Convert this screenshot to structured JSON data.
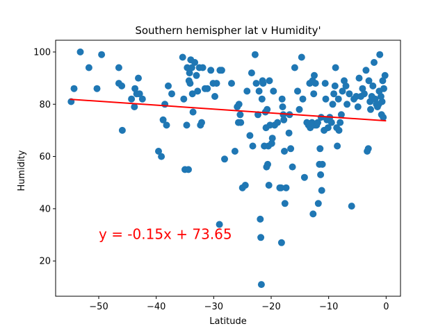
{
  "chart_data": {
    "type": "scatter",
    "title": "Southern hemispher lat v Humidity'",
    "xlabel": "Latitude",
    "ylabel": "Humidity",
    "xlim": [
      -57.5,
      2.5
    ],
    "ylim": [
      6.5,
      104.5
    ],
    "xticks": [
      -50,
      -40,
      -30,
      -20,
      -10,
      0
    ],
    "yticks": [
      20,
      40,
      60,
      80,
      100
    ],
    "grid": false,
    "point_color": "#1f77b4",
    "regression": {
      "slope": -0.15,
      "intercept": 73.65,
      "x_range": [
        -55,
        0
      ],
      "color": "#ff0000",
      "equation_label": "y = -0.15x + 73.65",
      "label_position": {
        "x": -50,
        "y": 30
      }
    },
    "points": [
      [
        -54.8,
        81
      ],
      [
        -54.3,
        86
      ],
      [
        -53.2,
        100
      ],
      [
        -51.7,
        94
      ],
      [
        -50.3,
        86
      ],
      [
        -49.5,
        99
      ],
      [
        -46.5,
        94
      ],
      [
        -46.5,
        88
      ],
      [
        -46.0,
        87
      ],
      [
        -45.9,
        70
      ],
      [
        -44.3,
        82
      ],
      [
        -43.8,
        79
      ],
      [
        -43.7,
        86
      ],
      [
        -43.4,
        84
      ],
      [
        -43.1,
        90
      ],
      [
        -42.9,
        84
      ],
      [
        -42.4,
        82
      ],
      [
        -39.6,
        62
      ],
      [
        -39.1,
        60
      ],
      [
        -38.8,
        74
      ],
      [
        -38.5,
        80
      ],
      [
        -38.2,
        72
      ],
      [
        -37.9,
        87
      ],
      [
        -37.3,
        84
      ],
      [
        -35.4,
        98
      ],
      [
        -35.2,
        82
      ],
      [
        -35.0,
        55
      ],
      [
        -34.7,
        72
      ],
      [
        -34.4,
        55
      ],
      [
        -34.6,
        94
      ],
      [
        -34.3,
        89
      ],
      [
        -34.2,
        92
      ],
      [
        -34.1,
        88
      ],
      [
        -34.0,
        97
      ],
      [
        -33.8,
        94
      ],
      [
        -33.7,
        84
      ],
      [
        -33.6,
        77
      ],
      [
        -33.3,
        96
      ],
      [
        -33.0,
        91
      ],
      [
        -32.8,
        85
      ],
      [
        -32.5,
        94
      ],
      [
        -32.3,
        72
      ],
      [
        -32.1,
        73
      ],
      [
        -31.9,
        94
      ],
      [
        -31.5,
        86
      ],
      [
        -31.1,
        86
      ],
      [
        -30.5,
        93
      ],
      [
        -30.1,
        88
      ],
      [
        -29.8,
        83
      ],
      [
        -29.5,
        88
      ],
      [
        -28.9,
        93
      ],
      [
        -28.6,
        93
      ],
      [
        -28.1,
        59
      ],
      [
        -29.0,
        34
      ],
      [
        -26.9,
        88
      ],
      [
        -26.3,
        62
      ],
      [
        -25.9,
        79
      ],
      [
        -25.7,
        73
      ],
      [
        -25.6,
        80
      ],
      [
        -25.4,
        76
      ],
      [
        -25.3,
        73
      ],
      [
        -25.0,
        48
      ],
      [
        -24.5,
        49
      ],
      [
        -24.2,
        85
      ],
      [
        -23.7,
        68
      ],
      [
        -23.4,
        92
      ],
      [
        -23.2,
        64
      ],
      [
        -22.8,
        99
      ],
      [
        -22.6,
        88
      ],
      [
        -22.3,
        76
      ],
      [
        -22.1,
        85
      ],
      [
        -21.9,
        36
      ],
      [
        -21.8,
        29
      ],
      [
        -21.7,
        11
      ],
      [
        -21.6,
        82
      ],
      [
        -21.5,
        89
      ],
      [
        -21.4,
        88
      ],
      [
        -21.2,
        64
      ],
      [
        -21.0,
        77
      ],
      [
        -20.9,
        71
      ],
      [
        -20.8,
        56
      ],
      [
        -20.7,
        78
      ],
      [
        -20.6,
        57
      ],
      [
        -20.5,
        64
      ],
      [
        -20.4,
        49
      ],
      [
        -20.3,
        89
      ],
      [
        -20.2,
        72
      ],
      [
        -19.9,
        65
      ],
      [
        -19.8,
        67
      ],
      [
        -19.6,
        85
      ],
      [
        -19.4,
        72
      ],
      [
        -18.9,
        73
      ],
      [
        -18.5,
        48
      ],
      [
        -18.3,
        48
      ],
      [
        -18.2,
        27
      ],
      [
        -18.1,
        82
      ],
      [
        -18.0,
        79
      ],
      [
        -17.9,
        76
      ],
      [
        -17.8,
        74
      ],
      [
        -17.7,
        62
      ],
      [
        -17.6,
        42
      ],
      [
        -17.4,
        48
      ],
      [
        -16.9,
        69
      ],
      [
        -16.8,
        76
      ],
      [
        -16.6,
        63
      ],
      [
        -16.3,
        56
      ],
      [
        -15.9,
        94
      ],
      [
        -15.4,
        85
      ],
      [
        -15.1,
        78
      ],
      [
        -14.7,
        98
      ],
      [
        -14.5,
        82
      ],
      [
        -14.2,
        52
      ],
      [
        -13.8,
        73
      ],
      [
        -13.5,
        72
      ],
      [
        -13.3,
        88
      ],
      [
        -13.2,
        71
      ],
      [
        -12.9,
        73
      ],
      [
        -12.8,
        89
      ],
      [
        -12.7,
        38
      ],
      [
        -12.6,
        84
      ],
      [
        -12.5,
        91
      ],
      [
        -12.4,
        72
      ],
      [
        -12.3,
        88
      ],
      [
        -12.1,
        72
      ],
      [
        -11.9,
        73
      ],
      [
        -11.8,
        42
      ],
      [
        -11.6,
        57
      ],
      [
        -11.5,
        63
      ],
      [
        -11.4,
        53
      ],
      [
        -11.3,
        75
      ],
      [
        -11.2,
        47
      ],
      [
        -11.1,
        57
      ],
      [
        -10.8,
        70
      ],
      [
        -10.6,
        88
      ],
      [
        -10.5,
        82
      ],
      [
        -10.3,
        74
      ],
      [
        -10.1,
        71
      ],
      [
        -9.8,
        75
      ],
      [
        -9.5,
        73
      ],
      [
        -9.3,
        80
      ],
      [
        -9.1,
        84
      ],
      [
        -8.9,
        87
      ],
      [
        -8.8,
        94
      ],
      [
        -8.6,
        71
      ],
      [
        -8.5,
        64
      ],
      [
        -8.3,
        82
      ],
      [
        -8.2,
        70
      ],
      [
        -8.0,
        73
      ],
      [
        -7.8,
        76
      ],
      [
        -7.6,
        85
      ],
      [
        -7.3,
        89
      ],
      [
        -7.0,
        87
      ],
      [
        -6.8,
        80
      ],
      [
        -6.4,
        84
      ],
      [
        -6.0,
        41
      ],
      [
        -5.6,
        82
      ],
      [
        -5.2,
        83
      ],
      [
        -4.9,
        79
      ],
      [
        -4.7,
        90
      ],
      [
        -4.4,
        83
      ],
      [
        -4.1,
        86
      ],
      [
        -3.8,
        84
      ],
      [
        -3.5,
        93
      ],
      [
        -3.3,
        62
      ],
      [
        -3.1,
        63
      ],
      [
        -3.0,
        89
      ],
      [
        -2.8,
        81
      ],
      [
        -2.7,
        78
      ],
      [
        -2.5,
        83
      ],
      [
        -2.3,
        87
      ],
      [
        -2.1,
        96
      ],
      [
        -1.9,
        82
      ],
      [
        -1.7,
        80
      ],
      [
        -1.5,
        79
      ],
      [
        -1.3,
        80
      ],
      [
        -1.2,
        85
      ],
      [
        -1.1,
        99
      ],
      [
        -0.9,
        83
      ],
      [
        -0.7,
        81
      ],
      [
        -0.8,
        76
      ],
      [
        -0.6,
        89
      ],
      [
        -0.5,
        75
      ],
      [
        -0.4,
        86
      ],
      [
        -0.2,
        91
      ]
    ]
  }
}
